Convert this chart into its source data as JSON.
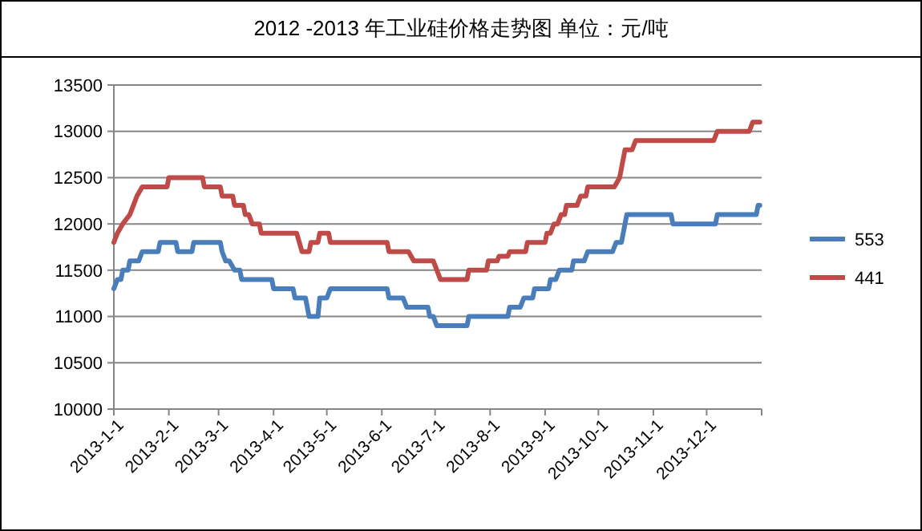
{
  "chart_data": {
    "type": "line",
    "title": "2012 -2013 年工业硅价格走势图  单位：元/吨",
    "xlim": [
      "2013-01-01",
      "2014-01-01"
    ],
    "xticks": [
      {
        "value": "2013-01-01",
        "label": "2013-1-1"
      },
      {
        "value": "2013-02-01",
        "label": "2013-2-1"
      },
      {
        "value": "2013-03-01",
        "label": "2013-3-1"
      },
      {
        "value": "2013-04-01",
        "label": "2013-4-1"
      },
      {
        "value": "2013-05-01",
        "label": "2013-5-1"
      },
      {
        "value": "2013-06-01",
        "label": "2013-6-1"
      },
      {
        "value": "2013-07-01",
        "label": "2013-7-1"
      },
      {
        "value": "2013-08-01",
        "label": "2013-8-1"
      },
      {
        "value": "2013-09-01",
        "label": "2013-9-1"
      },
      {
        "value": "2013-10-01",
        "label": "2013-10-1"
      },
      {
        "value": "2013-11-01",
        "label": "2013-11-1"
      },
      {
        "value": "2013-12-01",
        "label": "2013-12-1"
      },
      {
        "value": "2014-01-01",
        "label": null
      }
    ],
    "ylim": [
      10000,
      13500
    ],
    "yticks": [
      10000,
      10500,
      11000,
      11500,
      12000,
      12500,
      13000,
      13500
    ],
    "grid": "y",
    "legend": "right",
    "marker": "none",
    "line_style": "solid",
    "series": [
      {
        "name": "553",
        "color": "#4a7ebb",
        "x": [
          "2013-01-01",
          "2013-01-03",
          "2013-01-05",
          "2013-01-06",
          "2013-01-09",
          "2013-01-10",
          "2013-01-15",
          "2013-01-17",
          "2013-01-26",
          "2013-01-27",
          "2013-02-05",
          "2013-02-06",
          "2013-02-14",
          "2013-02-15",
          "2013-03-02",
          "2013-03-03",
          "2013-03-05",
          "2013-03-07",
          "2013-03-10",
          "2013-03-13",
          "2013-03-14",
          "2013-03-31",
          "2013-04-01",
          "2013-04-12",
          "2013-04-13",
          "2013-04-19",
          "2013-04-21",
          "2013-04-26",
          "2013-04-27",
          "2013-05-01",
          "2013-05-03",
          "2013-06-04",
          "2013-06-05",
          "2013-06-13",
          "2013-06-15",
          "2013-06-27",
          "2013-06-28",
          "2013-06-30",
          "2013-07-02",
          "2013-07-19",
          "2013-07-20",
          "2013-08-11",
          "2013-08-12",
          "2013-08-18",
          "2013-08-20",
          "2013-08-25",
          "2013-08-26",
          "2013-09-03",
          "2013-09-04",
          "2013-09-07",
          "2013-09-09",
          "2013-09-16",
          "2013-09-17",
          "2013-09-23",
          "2013-09-25",
          "2013-10-09",
          "2013-10-11",
          "2013-10-14",
          "2013-10-17",
          "2013-11-11",
          "2013-11-12",
          "2013-12-06",
          "2013-12-07",
          "2013-12-29",
          "2013-12-30",
          "2013-12-31"
        ],
        "values": [
          11300,
          11400,
          11400,
          11500,
          11500,
          11600,
          11600,
          11700,
          11700,
          11800,
          11800,
          11700,
          11700,
          11800,
          11800,
          11700,
          11600,
          11600,
          11500,
          11500,
          11400,
          11400,
          11300,
          11300,
          11200,
          11200,
          11000,
          11000,
          11200,
          11200,
          11300,
          11300,
          11200,
          11200,
          11100,
          11100,
          11000,
          11000,
          10900,
          10900,
          11000,
          11000,
          11100,
          11100,
          11200,
          11200,
          11300,
          11300,
          11400,
          11400,
          11500,
          11500,
          11600,
          11600,
          11700,
          11700,
          11800,
          11800,
          12100,
          12100,
          12000,
          12000,
          12100,
          12100,
          12200,
          12200
        ]
      },
      {
        "name": "441",
        "color": "#be4b48",
        "x": [
          "2013-01-01",
          "2013-01-03",
          "2013-01-06",
          "2013-01-10",
          "2013-01-12",
          "2013-01-14",
          "2013-01-17",
          "2013-01-31",
          "2013-02-01",
          "2013-02-20",
          "2013-02-21",
          "2013-03-02",
          "2013-03-03",
          "2013-03-09",
          "2013-03-10",
          "2013-03-15",
          "2013-03-16",
          "2013-03-18",
          "2013-03-20",
          "2013-03-24",
          "2013-03-25",
          "2013-04-14",
          "2013-04-17",
          "2013-04-21",
          "2013-04-22",
          "2013-04-26",
          "2013-04-27",
          "2013-05-02",
          "2013-05-03",
          "2013-06-04",
          "2013-06-05",
          "2013-06-16",
          "2013-06-19",
          "2013-06-30",
          "2013-07-02",
          "2013-07-04",
          "2013-07-19",
          "2013-07-20",
          "2013-07-30",
          "2013-07-31",
          "2013-08-05",
          "2013-08-06",
          "2013-08-11",
          "2013-08-12",
          "2013-08-21",
          "2013-08-22",
          "2013-09-01",
          "2013-09-02",
          "2013-09-04",
          "2013-09-06",
          "2013-09-08",
          "2013-09-10",
          "2013-09-12",
          "2013-09-13",
          "2013-09-19",
          "2013-09-21",
          "2013-09-24",
          "2013-09-25",
          "2013-10-10",
          "2013-10-13",
          "2013-10-16",
          "2013-10-20",
          "2013-10-22",
          "2013-12-05",
          "2013-12-07",
          "2013-12-25",
          "2013-12-27",
          "2013-12-31"
        ],
        "values": [
          11800,
          11900,
          12000,
          12100,
          12200,
          12300,
          12400,
          12400,
          12500,
          12500,
          12400,
          12400,
          12300,
          12300,
          12200,
          12200,
          12100,
          12100,
          12000,
          12000,
          11900,
          11900,
          11700,
          11700,
          11800,
          11800,
          11900,
          11900,
          11800,
          11800,
          11700,
          11700,
          11600,
          11600,
          11500,
          11400,
          11400,
          11500,
          11500,
          11600,
          11600,
          11650,
          11650,
          11700,
          11700,
          11800,
          11800,
          11900,
          11900,
          12000,
          12000,
          12100,
          12100,
          12200,
          12200,
          12300,
          12300,
          12400,
          12400,
          12500,
          12800,
          12800,
          12900,
          12900,
          13000,
          13000,
          13100,
          13100
        ]
      }
    ]
  }
}
